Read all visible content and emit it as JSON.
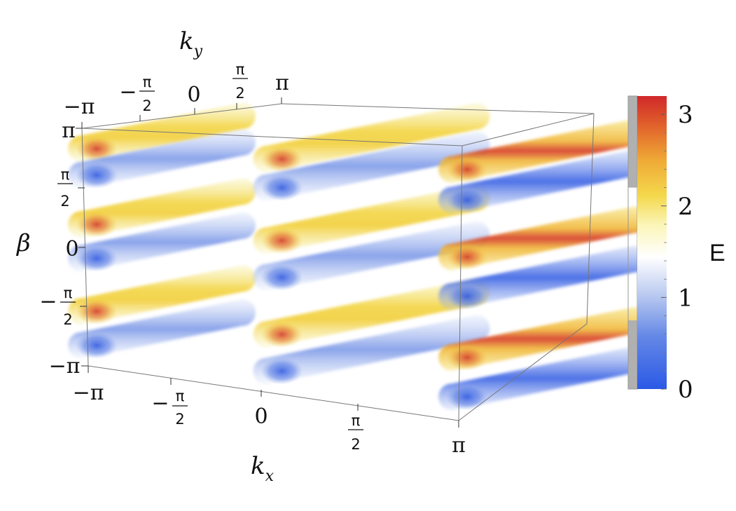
{
  "chart_data": {
    "type": "heatmap",
    "subtype": "3d-density-plot",
    "axes": {
      "x": {
        "label": "k",
        "subscript": "x",
        "range": [
          -3.14159,
          3.14159
        ],
        "tick_labels": [
          "−π",
          "−π/2",
          "0",
          "π/2",
          "π"
        ]
      },
      "y": {
        "label": "k",
        "subscript": "y",
        "range": [
          -3.14159,
          3.14159
        ],
        "tick_labels": [
          "−π",
          "−π/2",
          "0",
          "π/2",
          "π"
        ]
      },
      "z": {
        "label": "β",
        "range": [
          -3.14159,
          3.14159
        ],
        "tick_labels": [
          "−π",
          "−π/2",
          "0",
          "π/2",
          "π"
        ]
      }
    },
    "colorbar": {
      "title": "E",
      "range": [
        0,
        3.2
      ],
      "ticks": [
        0,
        1,
        2,
        3
      ],
      "colors": [
        "#2b59e6",
        "#7d9ae6",
        "#dde6f8",
        "#ffffff",
        "#f6ee88",
        "#f2c93a",
        "#e27a2b",
        "#d42a26"
      ],
      "masked_ranges": [
        [
          0,
          0.75
        ],
        [
          2.2,
          3.2
        ]
      ]
    },
    "x_slices": [
      -3.14159,
      0,
      3.14159
    ],
    "z_levels": [
      {
        "beta": 2.6,
        "E_max": 2.6,
        "sign": "high"
      },
      {
        "beta": 1.9,
        "E_min": 0.5,
        "sign": "low"
      },
      {
        "beta": 0.6,
        "E_max": 2.6,
        "sign": "high"
      },
      {
        "beta": -0.3,
        "E_min": 0.5,
        "sign": "low"
      },
      {
        "beta": -1.7,
        "E_max": 2.6,
        "sign": "high"
      },
      {
        "beta": -2.6,
        "E_min": 0.5,
        "sign": "low"
      }
    ],
    "legend": "right",
    "grid": false
  }
}
